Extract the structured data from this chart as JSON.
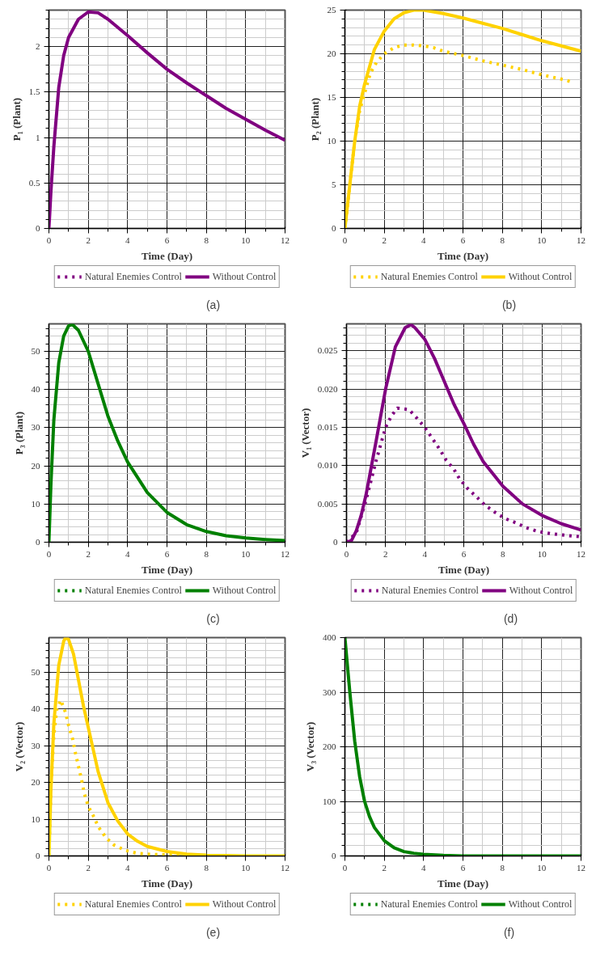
{
  "chart_data": [
    {
      "type": "line",
      "xlabel": "Time (Day)",
      "ylabel": "P₁ (Plant)",
      "xlim": [
        0,
        12
      ],
      "xticks": [
        0,
        2,
        4,
        6,
        8,
        10,
        12
      ],
      "ylim": [
        0,
        2.4
      ],
      "yticks": [
        0,
        0.5,
        1,
        1.5,
        2
      ],
      "grid": true,
      "legend": "bottom",
      "annotations": [
        "(a)"
      ],
      "series": [
        {
          "name": "Natural Enemies Control",
          "color": "#800080",
          "line_style": "dotted"
        },
        {
          "name": "Without Control",
          "color": "#800080",
          "line_style": "solid",
          "x": [
            0,
            0.1,
            0.25,
            0.5,
            0.75,
            1,
            1.5,
            2,
            2.5,
            3,
            4,
            5,
            6,
            7,
            8,
            9,
            10,
            11,
            12
          ],
          "values": [
            0,
            0.4,
            0.9,
            1.55,
            1.9,
            2.1,
            2.3,
            2.38,
            2.37,
            2.3,
            2.12,
            1.93,
            1.75,
            1.6,
            1.46,
            1.32,
            1.2,
            1.08,
            0.97
          ]
        }
      ]
    },
    {
      "type": "line",
      "xlabel": "Time (Day)",
      "ylabel": "P₂ (Plant)",
      "xlim": [
        0,
        12
      ],
      "xticks": [
        0,
        2,
        4,
        6,
        8,
        10,
        12
      ],
      "ylim": [
        0,
        25
      ],
      "yticks": [
        0,
        5,
        10,
        15,
        20,
        25
      ],
      "grid": true,
      "legend": "bottom",
      "annotations": [
        "(b)"
      ],
      "series": [
        {
          "name": "Natural Enemies Control",
          "color": "#ffd200",
          "line_style": "dotted",
          "x": [
            0,
            0.25,
            0.5,
            0.75,
            1,
            1.3,
            1.6,
            2,
            2.5,
            3,
            3.5,
            4,
            4.5,
            5,
            6,
            7,
            8,
            9,
            10,
            11,
            11.5
          ],
          "values": [
            0,
            5,
            10,
            13.5,
            15.5,
            17.8,
            19,
            20,
            20.7,
            21,
            21,
            20.9,
            20.7,
            20.3,
            19.8,
            19.2,
            18.7,
            18.2,
            17.6,
            17.1,
            16.8
          ]
        },
        {
          "name": "Without Control",
          "color": "#ffd200",
          "line_style": "solid",
          "x": [
            0,
            0.25,
            0.5,
            0.75,
            1,
            1.5,
            2,
            2.5,
            3,
            3.5,
            4,
            5,
            6,
            7,
            8,
            9,
            10,
            11,
            12
          ],
          "values": [
            0,
            5,
            10,
            14,
            16.5,
            20.5,
            22.6,
            24,
            24.7,
            25,
            25,
            24.6,
            24.1,
            23.5,
            22.9,
            22.2,
            21.5,
            20.9,
            20.3
          ]
        }
      ]
    },
    {
      "type": "line",
      "xlabel": "Time (Day)",
      "ylabel": "P₃ (Plant)",
      "xlim": [
        0,
        12
      ],
      "xticks": [
        0,
        2,
        4,
        6,
        8,
        10,
        12
      ],
      "ylim": [
        0,
        57.2
      ],
      "yticks": [
        0,
        10,
        20,
        30,
        40,
        50
      ],
      "grid": true,
      "legend": "bottom",
      "annotations": [
        "(c)"
      ],
      "series": [
        {
          "name": "Natural Enemies Control",
          "color": "#008000",
          "line_style": "dotted"
        },
        {
          "name": "Without Control",
          "color": "#008000",
          "line_style": "solid",
          "x": [
            0,
            0.1,
            0.25,
            0.5,
            0.75,
            1,
            1.2,
            1.5,
            2,
            2.5,
            3,
            3.5,
            4,
            5,
            6,
            7,
            8,
            9,
            10,
            11,
            12
          ],
          "values": [
            0,
            15,
            32,
            47,
            54,
            56.7,
            57,
            55.5,
            50,
            41.5,
            33,
            26.5,
            21,
            13,
            7.8,
            4.6,
            2.8,
            1.7,
            1.1,
            0.7,
            0.4
          ]
        }
      ]
    },
    {
      "type": "line",
      "xlabel": "Time (Day)",
      "ylabel": "V₁ (Vector)",
      "xlim": [
        0,
        12
      ],
      "xticks": [
        0,
        2,
        4,
        6,
        8,
        10,
        12
      ],
      "ylim": [
        0,
        0.0285
      ],
      "yticks": [
        0,
        0.005,
        {
          "value": 0.01,
          "label": "0.010"
        },
        0.015,
        {
          "value": 0.02,
          "label": "0.020"
        },
        0.025
      ],
      "grid": true,
      "legend": "bottom",
      "annotations": [
        "(d)"
      ],
      "series": [
        {
          "name": "Natural Enemies Control",
          "color": "#800080",
          "line_style": "dotted",
          "x": [
            0,
            0.5,
            1,
            1.5,
            2,
            2.3,
            2.6,
            3.2,
            3.6,
            4,
            4.4,
            4.8,
            5.1,
            5.5,
            5.8,
            6.2,
            6.7,
            7.1,
            7.6,
            8.1,
            8.7,
            9.2,
            9.8,
            10.5,
            11.2,
            12
          ],
          "values": [
            0,
            0.0012,
            0.0055,
            0.0105,
            0.015,
            0.0165,
            0.0175,
            0.0173,
            0.0162,
            0.015,
            0.0135,
            0.012,
            0.0107,
            0.0095,
            0.0082,
            0.007,
            0.0058,
            0.0048,
            0.0039,
            0.0031,
            0.0025,
            0.0019,
            0.0014,
            0.0011,
            0.0009,
            0.0007
          ]
        },
        {
          "name": "Without Control",
          "color": "#800080",
          "line_style": "solid",
          "x": [
            0,
            0.25,
            0.5,
            0.75,
            1,
            1.5,
            2,
            2.5,
            3,
            3.3,
            3.5,
            4,
            4.5,
            5,
            5.5,
            6,
            6.5,
            7,
            8,
            9,
            10,
            11,
            12
          ],
          "values": [
            0,
            0.0002,
            0.0015,
            0.0035,
            0.0062,
            0.013,
            0.02,
            0.0255,
            0.028,
            0.0284,
            0.028,
            0.0265,
            0.024,
            0.021,
            0.018,
            0.0155,
            0.0128,
            0.0105,
            0.0073,
            0.005,
            0.0035,
            0.0024,
            0.0016
          ]
        }
      ]
    },
    {
      "type": "line",
      "xlabel": "Time (Day)",
      "ylabel": "V₂ (Vector)",
      "xlim": [
        0,
        12
      ],
      "xticks": [
        0,
        2,
        4,
        6,
        8,
        10,
        12
      ],
      "ylim": [
        0,
        59.5
      ],
      "yticks": [
        0,
        10,
        20,
        30,
        40,
        50
      ],
      "grid": true,
      "legend": "bottom",
      "annotations": [
        "(e)"
      ],
      "series": [
        {
          "name": "Natural Enemies Control",
          "color": "#ffd200",
          "line_style": "dotted",
          "x": [
            0,
            0.1,
            0.25,
            0.4,
            0.6,
            0.85,
            1,
            1.2,
            1.35,
            1.5,
            1.65,
            1.8,
            2,
            2.3,
            2.5,
            2.9,
            3.3,
            3.9,
            4.5,
            5.2,
            6,
            6.7
          ],
          "values": [
            0,
            18,
            33,
            40,
            42.5,
            39,
            35.5,
            32,
            28,
            24.5,
            21,
            17,
            13.5,
            10.5,
            8,
            5,
            3,
            1.5,
            0.7,
            0.4,
            0.3,
            0.2
          ]
        },
        {
          "name": "Without Control",
          "color": "#ffd200",
          "line_style": "solid",
          "x": [
            0,
            0.1,
            0.25,
            0.5,
            0.75,
            0.85,
            1,
            1.25,
            1.5,
            1.75,
            2,
            2.5,
            3,
            3.5,
            4,
            4.5,
            5,
            6,
            7,
            8,
            9,
            10,
            12
          ],
          "values": [
            0,
            18,
            36,
            52,
            58.5,
            59.5,
            59,
            55,
            48,
            41,
            35,
            23,
            14.5,
            9.5,
            6,
            4,
            2.6,
            1.2,
            0.5,
            0.2,
            0.1,
            0,
            0
          ]
        }
      ]
    },
    {
      "type": "line",
      "xlabel": "Time (Day)",
      "ylabel": "V₃ (Vector)",
      "xlim": [
        0,
        12
      ],
      "xticks": [
        0,
        2,
        4,
        6,
        8,
        10,
        12
      ],
      "ylim": [
        0,
        400
      ],
      "yticks": [
        0,
        100,
        200,
        300,
        400
      ],
      "grid": true,
      "legend": "bottom",
      "annotations": [
        "(f)"
      ],
      "series": [
        {
          "name": "Natural Enemies Control",
          "color": "#008000",
          "line_style": "dotted"
        },
        {
          "name": "Without Control",
          "color": "#008000",
          "line_style": "solid",
          "x": [
            0,
            0.25,
            0.5,
            0.75,
            1,
            1.25,
            1.5,
            2,
            2.5,
            3,
            3.5,
            4,
            5,
            6,
            8,
            12
          ],
          "values": [
            400,
            300,
            210,
            145,
            100,
            72,
            52,
            28,
            15,
            8,
            5,
            3,
            1,
            0,
            0,
            0
          ]
        }
      ]
    }
  ]
}
